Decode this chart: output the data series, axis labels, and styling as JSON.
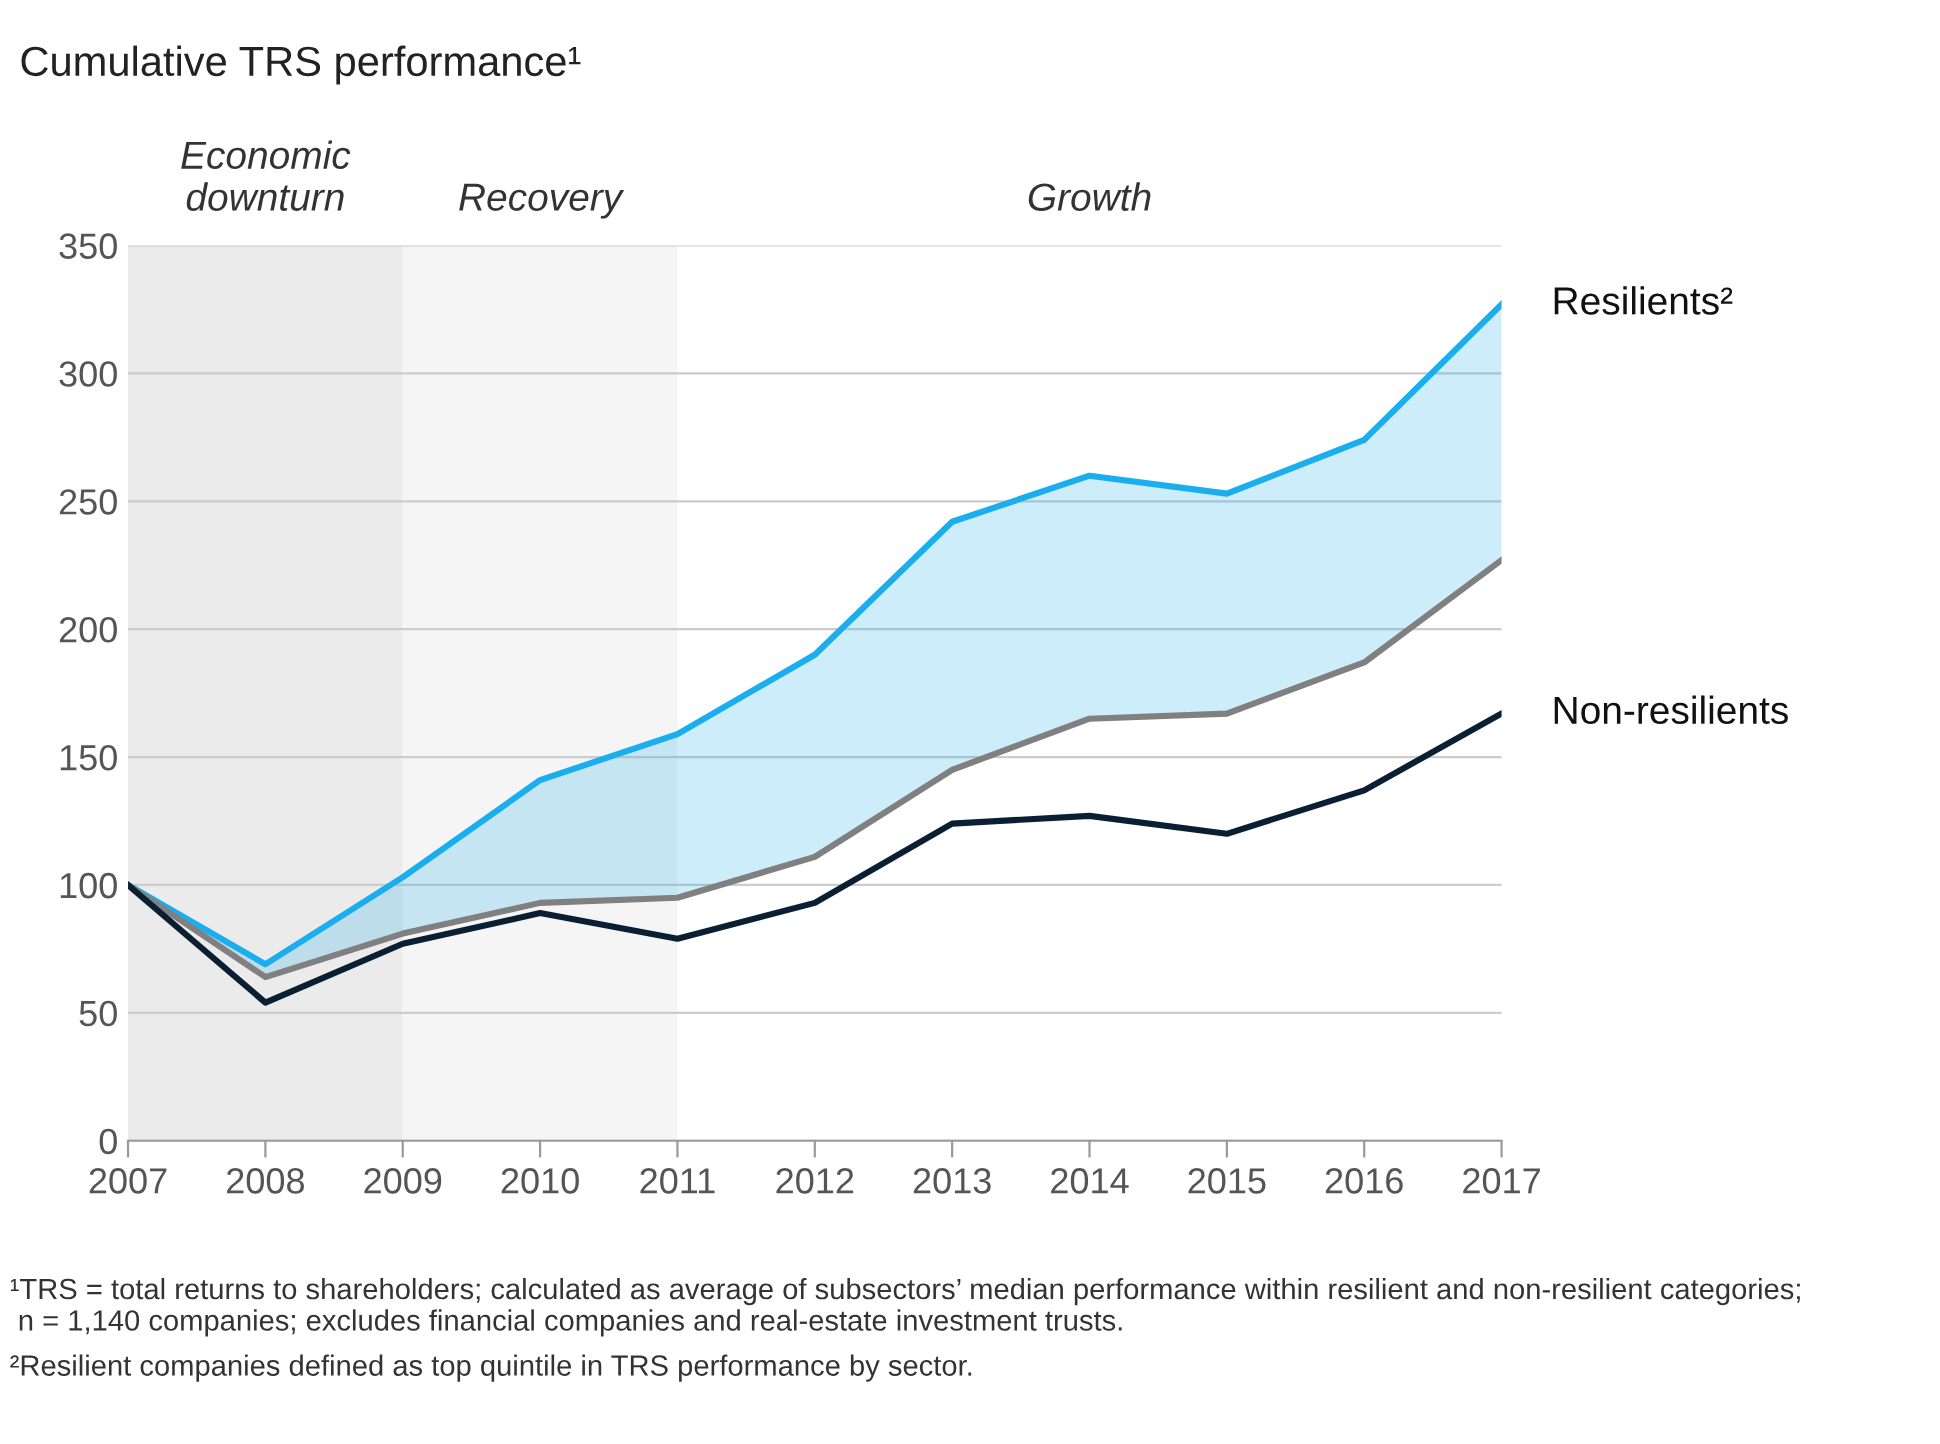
{
  "chart_data": {
    "type": "line",
    "title": "Cumulative TRS performance¹",
    "x": [
      2007,
      2008,
      2009,
      2010,
      2011,
      2012,
      2013,
      2014,
      2015,
      2016,
      2017
    ],
    "series": [
      {
        "name": "Resilients²",
        "color": "#1aaeef",
        "values": [
          100,
          69,
          103,
          141,
          159,
          190,
          242,
          260,
          253,
          274,
          327
        ],
        "lower": [
          100,
          64,
          81,
          93,
          95,
          111,
          145,
          165,
          167,
          187,
          227
        ],
        "upper": [
          100,
          69,
          103,
          141,
          159,
          190,
          242,
          260,
          253,
          274,
          327
        ]
      },
      {
        "color": "#808080",
        "values": [
          100,
          64,
          81,
          93,
          95,
          111,
          145,
          165,
          167,
          187,
          227
        ]
      },
      {
        "name": "Non-resilients",
        "color": "#0b1f33",
        "values": [
          100,
          54,
          77,
          89,
          79,
          93,
          124,
          127,
          120,
          137,
          167
        ]
      }
    ],
    "xlim": [
      2007,
      2017
    ],
    "xticks": [
      2007,
      2008,
      2009,
      2010,
      2011,
      2012,
      2013,
      2014,
      2015,
      2016,
      2017
    ],
    "ylim": [
      0,
      350
    ],
    "yticks": [
      0,
      50,
      100,
      150,
      200,
      250,
      300,
      350
    ],
    "grid": "y",
    "line_style": "solid",
    "bands": [
      {
        "axis": "x",
        "from": 2007,
        "to": 2009,
        "label": "Economic\ndownturn",
        "color": "#ebebeb"
      },
      {
        "axis": "x",
        "from": 2009,
        "to": 2011,
        "label": "Recovery",
        "color": "#f5f5f5"
      }
    ],
    "annotations": [
      "Growth",
      "¹TRS = total returns to shareholders; calculated as average of subsectors’ median performance within resilient and non-resilient categories;\n n = 1,140 companies; excludes financial companies and real-estate investment trusts.",
      "²Resilient companies defined as top quintile in TRS performance by sector."
    ]
  }
}
